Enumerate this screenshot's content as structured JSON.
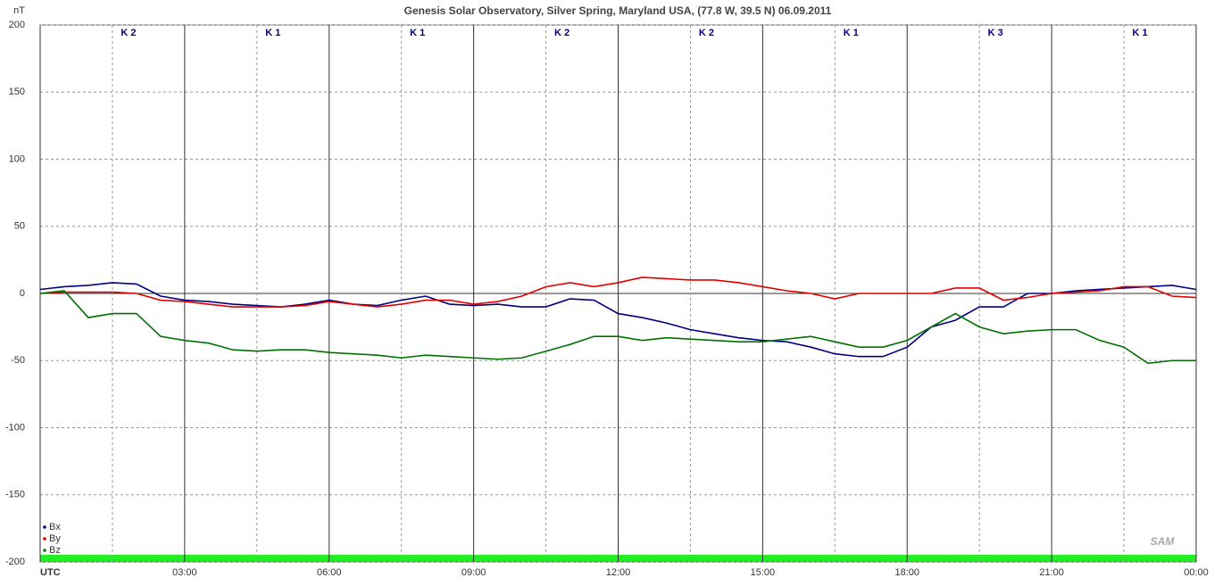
{
  "chart_data": {
    "type": "line",
    "title": "Genesis Solar Observatory, Silver Spring, Maryland USA, (77.8 W, 39.5 N)  06.09.2011",
    "y_unit": "nT",
    "logo": "SAM",
    "k_indices": [
      "K 2",
      "K 1",
      "K 1",
      "K 2",
      "K 2",
      "K 1",
      "K 3",
      "K 1"
    ],
    "x": [
      0,
      0.5,
      1,
      1.5,
      2,
      2.5,
      3,
      3.5,
      4,
      4.5,
      5,
      5.5,
      6,
      6.5,
      7,
      7.5,
      8,
      8.5,
      9,
      9.5,
      10,
      10.5,
      11,
      11.5,
      12,
      12.5,
      13,
      13.5,
      14,
      14.5,
      15,
      15.5,
      16,
      16.5,
      17,
      17.5,
      18,
      18.5,
      19,
      19.5,
      20,
      20.5,
      21,
      21.5,
      22,
      22.5,
      23,
      23.5,
      24
    ],
    "series": [
      {
        "name": "Bx",
        "color": "#000080",
        "values": [
          3,
          5,
          6,
          8,
          7,
          -2,
          -5,
          -6,
          -8,
          -9,
          -10,
          -8,
          -5,
          -8,
          -9,
          -5,
          -2,
          -8,
          -9,
          -8,
          -10,
          -10,
          -4,
          -5,
          -15,
          -18,
          -22,
          -27,
          -30,
          -33,
          -35,
          -36,
          -40,
          -45,
          -47,
          -47,
          -40,
          -25,
          -20,
          -10,
          -10,
          0,
          0,
          2,
          3,
          4,
          5,
          6,
          3
        ]
      },
      {
        "name": "By",
        "color": "#e00000",
        "values": [
          0,
          1,
          1,
          1,
          0,
          -5,
          -6,
          -8,
          -10,
          -10,
          -10,
          -9,
          -6,
          -8,
          -10,
          -8,
          -5,
          -5,
          -8,
          -6,
          -2,
          5,
          8,
          5,
          8,
          12,
          11,
          10,
          10,
          8,
          5,
          2,
          0,
          -4,
          0,
          0,
          0,
          0,
          4,
          4,
          -5,
          -3,
          0,
          1,
          2,
          5,
          5,
          -2,
          -3
        ]
      },
      {
        "name": "Bz",
        "color": "#007000",
        "values": [
          0,
          2,
          -18,
          -15,
          -15,
          -32,
          -35,
          -37,
          -42,
          -43,
          -42,
          -42,
          -44,
          -45,
          -46,
          -48,
          -46,
          -47,
          -48,
          -49,
          -48,
          -43,
          -38,
          -32,
          -32,
          -35,
          -33,
          -34,
          -35,
          -36,
          -36,
          -34,
          -32,
          -36,
          -40,
          -40,
          -35,
          -25,
          -15,
          -25,
          -30,
          -28,
          -27,
          -27,
          -35,
          -40,
          -52,
          -50,
          -50
        ]
      }
    ],
    "xlim": [
      0,
      24
    ],
    "xticks": [
      {
        "value": 0,
        "label": "UTC"
      },
      {
        "value": 3,
        "label": "03:00"
      },
      {
        "value": 6,
        "label": "06:00"
      },
      {
        "value": 9,
        "label": "09:00"
      },
      {
        "value": 12,
        "label": "12:00"
      },
      {
        "value": 15,
        "label": "15:00"
      },
      {
        "value": 18,
        "label": "18:00"
      },
      {
        "value": 21,
        "label": "21:00"
      },
      {
        "value": 24,
        "label": "00:00"
      }
    ],
    "ylim": [
      -200,
      200
    ],
    "yticks": [
      -200,
      -150,
      -100,
      -50,
      0,
      50,
      100,
      150,
      200
    ],
    "grid": true
  }
}
